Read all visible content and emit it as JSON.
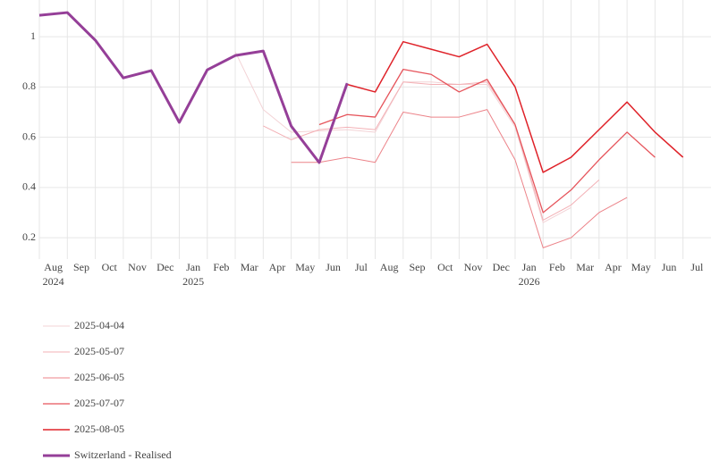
{
  "chart_data": {
    "type": "line",
    "ylim": [
      0.115,
      1.146
    ],
    "yticks": [
      0.2,
      0.4,
      0.6,
      0.8,
      1
    ],
    "xlim": [
      "2024-08",
      "2026-08"
    ],
    "grid": true,
    "xticks": [
      {
        "value": "2024-08",
        "label": "Aug"
      },
      {
        "value": "2024-09",
        "label": "Sep"
      },
      {
        "value": "2024-10",
        "label": "Oct"
      },
      {
        "value": "2024-11",
        "label": "Nov"
      },
      {
        "value": "2024-12",
        "label": "Dec"
      },
      {
        "value": "2025-01",
        "label": "Jan"
      },
      {
        "value": "2025-02",
        "label": "Feb"
      },
      {
        "value": "2025-03",
        "label": "Mar"
      },
      {
        "value": "2025-04",
        "label": "Apr"
      },
      {
        "value": "2025-05",
        "label": "May"
      },
      {
        "value": "2025-06",
        "label": "Jun"
      },
      {
        "value": "2025-07",
        "label": "Jul"
      },
      {
        "value": "2025-08",
        "label": "Aug"
      },
      {
        "value": "2025-09",
        "label": "Sep"
      },
      {
        "value": "2025-10",
        "label": "Oct"
      },
      {
        "value": "2025-11",
        "label": "Nov"
      },
      {
        "value": "2025-12",
        "label": "Dec"
      },
      {
        "value": "2026-01",
        "label": "Jan"
      },
      {
        "value": "2026-02",
        "label": "Feb"
      },
      {
        "value": "2026-03",
        "label": "Mar"
      },
      {
        "value": "2026-04",
        "label": "Apr"
      },
      {
        "value": "2026-05",
        "label": "May"
      },
      {
        "value": "2026-06",
        "label": "Jun"
      },
      {
        "value": "2026-07",
        "label": "Jul"
      }
    ],
    "xtick_years": [
      {
        "value": "2024-08",
        "label": "2024"
      },
      {
        "value": "2025-01",
        "label": "2025"
      },
      {
        "value": "2026-01",
        "label": "2026"
      }
    ],
    "series": [
      {
        "name": "2025-04-04",
        "color": "#f3d3d6",
        "width": 1,
        "x": [
          "2025-03",
          "2025-04",
          "2025-05",
          "2025-06",
          "2025-07",
          "2025-08",
          "2025-09",
          "2025-10",
          "2025-11",
          "2025-12",
          "2026-01",
          "2026-02",
          "2026-03"
        ],
        "values": [
          0.94,
          0.71,
          0.62,
          0.625,
          0.63,
          0.62,
          0.82,
          0.82,
          0.81,
          0.81,
          0.64,
          0.26,
          0.32
        ]
      },
      {
        "name": "2025-05-07",
        "color": "#f3b0b5",
        "width": 1,
        "x": [
          "2025-04",
          "2025-05",
          "2025-06",
          "2025-07",
          "2025-08",
          "2025-09",
          "2025-10",
          "2025-11",
          "2025-12",
          "2026-01",
          "2026-02",
          "2026-03",
          "2026-04"
        ],
        "values": [
          0.645,
          0.59,
          0.63,
          0.64,
          0.63,
          0.82,
          0.81,
          0.81,
          0.82,
          0.65,
          0.27,
          0.33,
          0.43
        ]
      },
      {
        "name": "2025-06-05",
        "color": "#ec8389",
        "width": 1,
        "x": [
          "2025-05",
          "2025-06",
          "2025-07",
          "2025-08",
          "2025-09",
          "2025-10",
          "2025-11",
          "2025-12",
          "2026-01",
          "2026-02",
          "2026-03",
          "2026-04",
          "2026-05"
        ],
        "values": [
          0.5,
          0.5,
          0.52,
          0.5,
          0.7,
          0.68,
          0.68,
          0.71,
          0.51,
          0.16,
          0.2,
          0.3,
          0.36
        ]
      },
      {
        "name": "2025-07-07",
        "color": "#e6545b",
        "width": 1.3,
        "x": [
          "2025-06",
          "2025-07",
          "2025-08",
          "2025-09",
          "2025-10",
          "2025-11",
          "2025-12",
          "2026-01",
          "2026-02",
          "2026-03",
          "2026-04",
          "2026-05",
          "2026-06"
        ],
        "values": [
          0.65,
          0.69,
          0.68,
          0.87,
          0.85,
          0.78,
          0.83,
          0.65,
          0.3,
          0.39,
          0.51,
          0.62,
          0.52
        ]
      },
      {
        "name": "2025-08-05",
        "color": "#df2229",
        "width": 1.5,
        "x": [
          "2025-07",
          "2025-08",
          "2025-09",
          "2025-10",
          "2025-11",
          "2025-12",
          "2026-01",
          "2026-02",
          "2026-03",
          "2026-04",
          "2026-05",
          "2026-06",
          "2026-07"
        ],
        "values": [
          0.81,
          0.78,
          0.98,
          0.95,
          0.92,
          0.97,
          0.8,
          0.46,
          0.52,
          0.63,
          0.74,
          0.62,
          0.52
        ]
      },
      {
        "name": "Switzerland - Realised",
        "color": "#953f98",
        "width": 3,
        "x": [
          "2024-08",
          "2024-09",
          "2024-10",
          "2024-11",
          "2024-12",
          "2025-01",
          "2025-02",
          "2025-03",
          "2025-04",
          "2025-05",
          "2025-06",
          "2025-07"
        ],
        "values": [
          1.085,
          1.096,
          0.986,
          0.836,
          0.865,
          0.659,
          0.868,
          0.925,
          0.943,
          0.644,
          0.499,
          0.815
        ]
      }
    ]
  }
}
